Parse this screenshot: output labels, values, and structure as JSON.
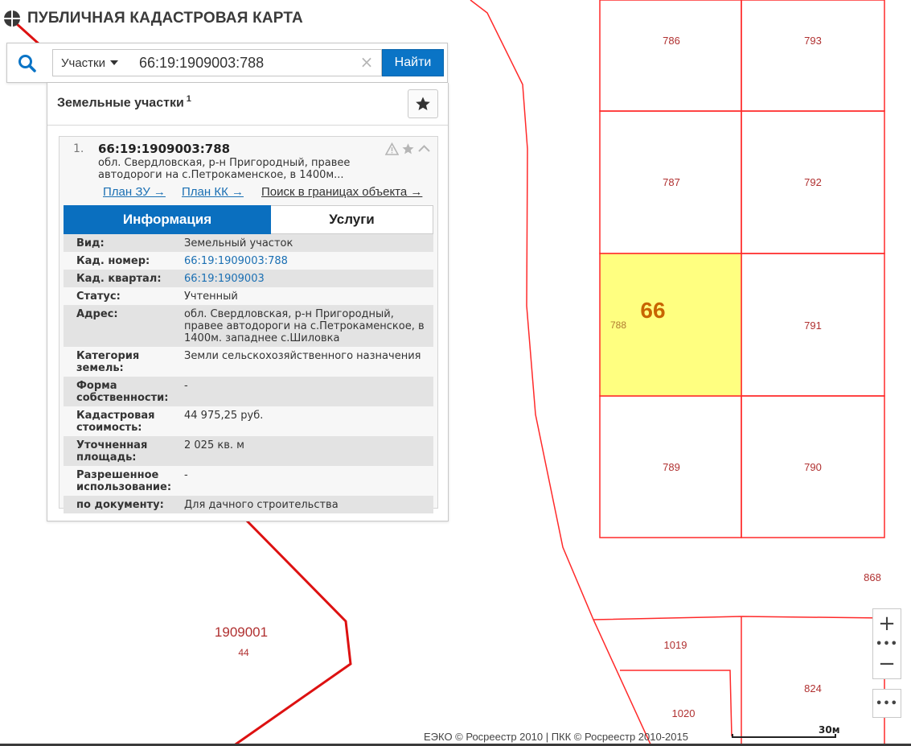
{
  "app": {
    "title": "ПУБЛИЧНАЯ КАДАСТРОВАЯ КАРТА",
    "logo_icon": "pkk-logo-icon"
  },
  "search": {
    "type_label": "Участки",
    "query": "66:19:1909003:788",
    "clear_symbol": "×",
    "submit_label": "Найти"
  },
  "results": {
    "title": "Земельные участки",
    "count": "1",
    "item": {
      "index": "1.",
      "cad_number": "66:19:1909003:788",
      "address_short": "обл. Свердловская, р-н Пригородный, правее автодороги на с.Петрокаменское, в 1400м...",
      "links": [
        "План ЗУ →",
        "План КК →",
        "Поиск в границах объекта →"
      ],
      "tabs": [
        "Информация",
        "Услуги"
      ],
      "rows": [
        {
          "k": "Вид:",
          "v": "Земельный участок"
        },
        {
          "k": "Кад. номер:",
          "v": "66:19:1909003:788",
          "link": true
        },
        {
          "k": "Кад. квартал:",
          "v": "66:19:1909003",
          "link": true
        },
        {
          "k": "Статус:",
          "v": "Учтенный"
        },
        {
          "k": "Адрес:",
          "v": "обл. Свердловская, р-н Пригородный, правее автодороги на с.Петрокаменское, в 1400м. западнее с.Шиловка"
        },
        {
          "k": "Категория земель:",
          "v": "Земли сельскохозяйственного назначения"
        },
        {
          "k": "Форма собственности:",
          "v": "-"
        },
        {
          "k": "Кадастровая стоимость:",
          "v": "44 975,25 руб."
        },
        {
          "k": "Уточненная площадь:",
          "v": "2 025 кв. м"
        },
        {
          "k": "Разрешенное использование:",
          "v": "-"
        },
        {
          "k": "по документу:",
          "v": "Для дачного строительства"
        }
      ]
    }
  },
  "map": {
    "colors": {
      "boundary": "#ff2a2a",
      "quarter_boundary": "#dd1111",
      "highlight_fill": "#ffff80",
      "label": "#b03030",
      "highlight_label": "#c86400"
    },
    "parcel_labels": [
      "786",
      "793",
      "787",
      "792",
      "788",
      "791",
      "789",
      "790",
      "868",
      "1019",
      "824",
      "1020"
    ],
    "highlight_label": "66",
    "quarter_label": "1909001",
    "quarter_sublabel": "44"
  },
  "controls": {
    "zoom_in": "+",
    "zoom_dots": "•••",
    "zoom_out": "−",
    "more": "•••"
  },
  "footer": {
    "attribution": "ЕЭКО © Росреестр 2010 | ПКК © Росреестр 2010-2015",
    "scale_label": "30м"
  }
}
